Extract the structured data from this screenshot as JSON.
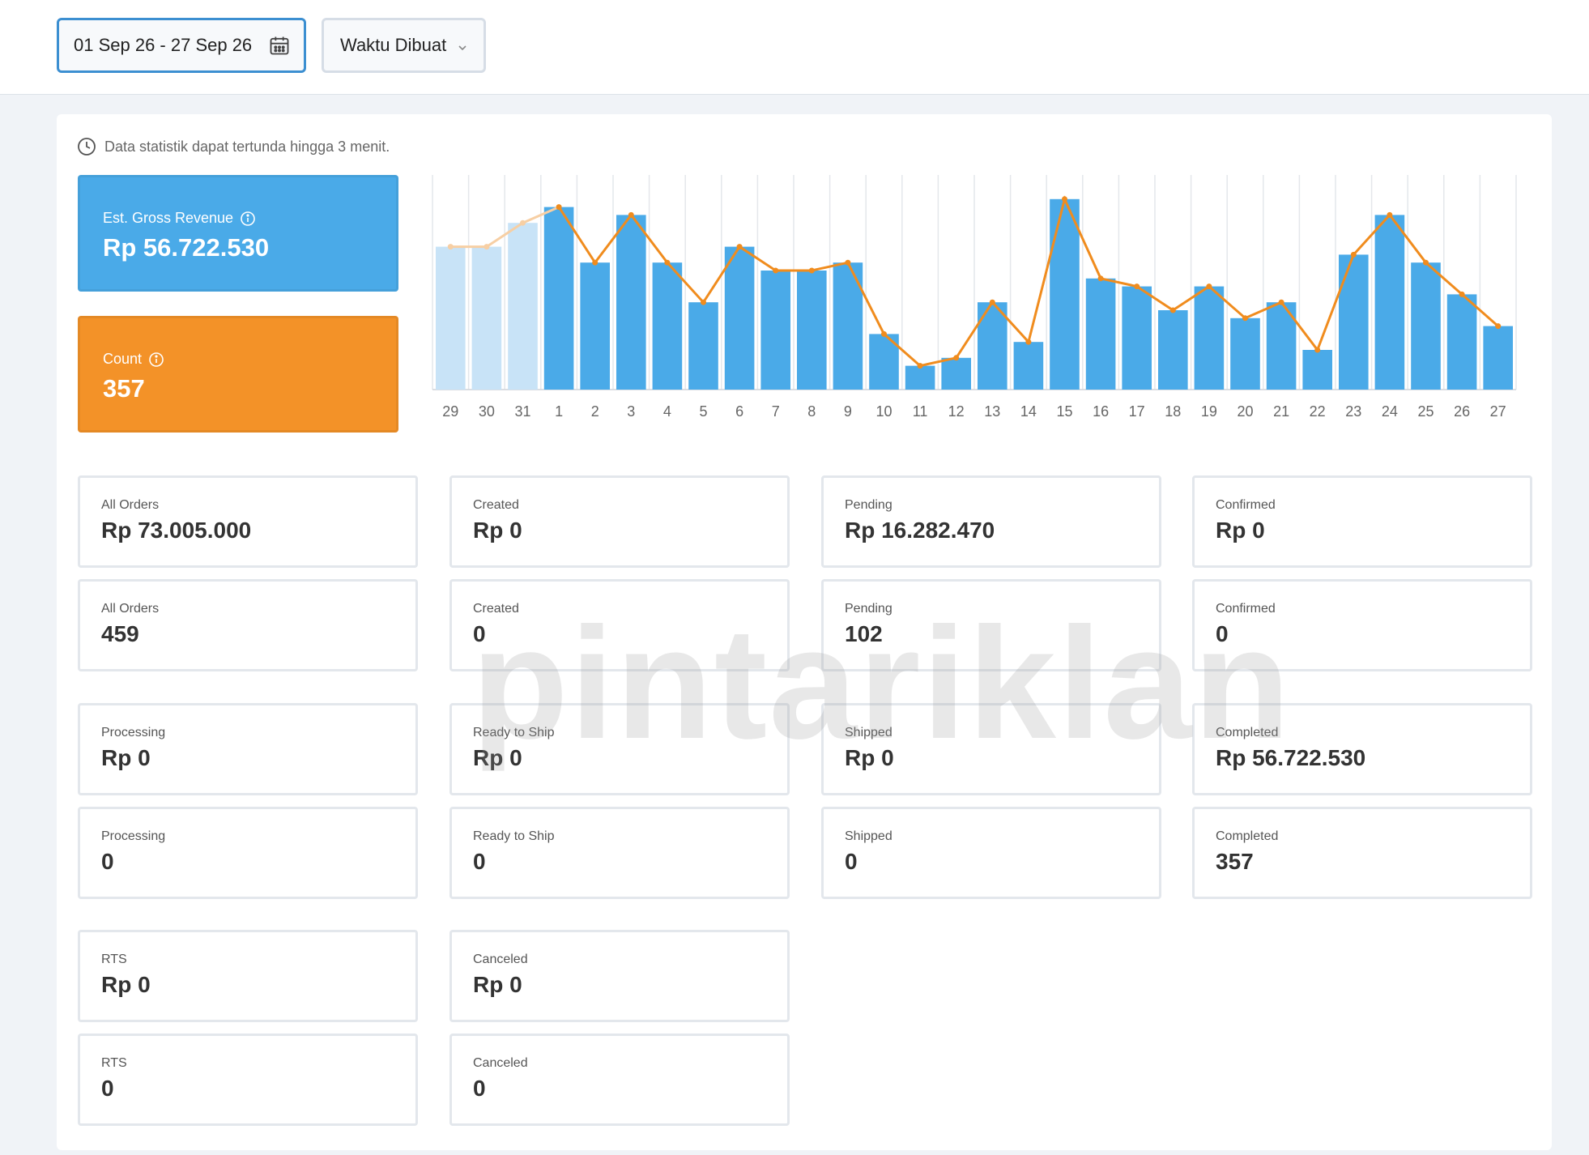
{
  "filters": {
    "date_range": "01 Sep 26 - 27 Sep 26",
    "time_type": "Waktu Dibuat"
  },
  "notice": "Data statistik dapat tertunda hingga 3 menit.",
  "kpis": {
    "revenue": {
      "label": "Est. Gross Revenue",
      "value": "Rp 56.722.530"
    },
    "count": {
      "label": "Count",
      "value": "357"
    }
  },
  "colors": {
    "bar": "#4aaae8",
    "bar_prev": "#c8e3f7",
    "line": "#f08c1e",
    "line_prev": "#f7cfa4",
    "revenue_card": "#4aaae8",
    "count_card": "#f39228"
  },
  "chart_data": {
    "type": "bar",
    "categories": [
      "29",
      "30",
      "31",
      "1",
      "2",
      "3",
      "4",
      "5",
      "6",
      "7",
      "8",
      "9",
      "10",
      "11",
      "12",
      "13",
      "14",
      "15",
      "16",
      "17",
      "18",
      "19",
      "20",
      "21",
      "22",
      "23",
      "24",
      "25",
      "26",
      "27"
    ],
    "series": [
      {
        "type": "bar",
        "values": [
          36,
          36,
          42,
          46,
          32,
          44,
          32,
          22,
          36,
          30,
          30,
          32,
          14,
          6,
          8,
          22,
          12,
          48,
          28,
          26,
          20,
          26,
          18,
          22,
          10,
          34,
          44,
          32,
          24,
          16
        ]
      },
      {
        "type": "line",
        "values": [
          36,
          36,
          42,
          46,
          32,
          44,
          32,
          22,
          36,
          30,
          30,
          32,
          14,
          6,
          8,
          22,
          12,
          48,
          28,
          26,
          20,
          26,
          18,
          22,
          10,
          34,
          44,
          32,
          24,
          16
        ]
      }
    ],
    "highlight_from_index": 3,
    "ylim": [
      0,
      50
    ],
    "grid": "vertical"
  },
  "cards": [
    {
      "label": "All Orders",
      "value": "Rp 73.005.000"
    },
    {
      "label": "Created",
      "value": "Rp 0"
    },
    {
      "label": "Pending",
      "value": "Rp 16.282.470"
    },
    {
      "label": "Confirmed",
      "value": "Rp 0"
    },
    {
      "label": "All Orders",
      "value": "459"
    },
    {
      "label": "Created",
      "value": "0"
    },
    {
      "label": "Pending",
      "value": "102"
    },
    {
      "label": "Confirmed",
      "value": "0"
    },
    {
      "label": "Processing",
      "value": "Rp 0"
    },
    {
      "label": "Ready to Ship",
      "value": "Rp 0"
    },
    {
      "label": "Shipped",
      "value": "Rp 0"
    },
    {
      "label": "Completed",
      "value": "Rp 56.722.530"
    },
    {
      "label": "Processing",
      "value": "0"
    },
    {
      "label": "Ready to Ship",
      "value": "0"
    },
    {
      "label": "Shipped",
      "value": "0"
    },
    {
      "label": "Completed",
      "value": "357"
    },
    {
      "label": "RTS",
      "value": "Rp 0"
    },
    {
      "label": "Canceled",
      "value": "Rp 0"
    },
    {
      "label": "RTS",
      "value": "0"
    },
    {
      "label": "Canceled",
      "value": "0"
    }
  ],
  "watermark": "pintariklan"
}
